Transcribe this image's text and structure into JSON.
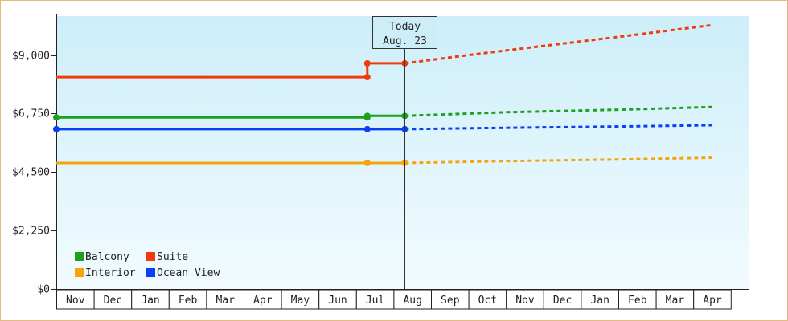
{
  "chart_data": {
    "type": "line",
    "title": "",
    "xlabel": "",
    "ylabel": "",
    "ylim": [
      0,
      10500
    ],
    "y_ticks": [
      0,
      2250,
      4500,
      6750,
      9000
    ],
    "y_tick_labels": [
      "$0",
      "$2,250",
      "$4,500",
      "$6,750",
      "$9,000"
    ],
    "month_labels": [
      "Nov",
      "Dec",
      "Jan",
      "Feb",
      "Mar",
      "Apr",
      "May",
      "Jun",
      "Jul",
      "Aug",
      "Sep",
      "Oct",
      "Nov",
      "Dec",
      "Jan",
      "Feb",
      "Mar",
      "Apr"
    ],
    "today": {
      "label": "Today",
      "date": "Aug. 23",
      "x": 9.3
    },
    "grid": false,
    "legend_position": "bottom-left",
    "series": [
      {
        "name": "Balcony",
        "color": "#1ca11c",
        "actual": [
          [
            0,
            6600
          ],
          [
            8.3,
            6600
          ],
          [
            8.3,
            6660
          ],
          [
            9.3,
            6660
          ]
        ],
        "forecast": [
          [
            9.3,
            6660
          ],
          [
            12,
            6800
          ],
          [
            15,
            6900
          ],
          [
            17.5,
            7000
          ]
        ]
      },
      {
        "name": "Suite",
        "color": "#f23b0c",
        "actual": [
          [
            0,
            8150
          ],
          [
            8.3,
            8150
          ],
          [
            8.3,
            8680
          ],
          [
            9.3,
            8680
          ]
        ],
        "forecast": [
          [
            9.3,
            8680
          ],
          [
            11,
            9000
          ],
          [
            13,
            9350
          ],
          [
            15,
            9700
          ],
          [
            17.5,
            10150
          ]
        ]
      },
      {
        "name": "Interior",
        "color": "#f5a40c",
        "actual": [
          [
            0,
            4850
          ],
          [
            8.3,
            4850
          ],
          [
            9.3,
            4850
          ]
        ],
        "forecast": [
          [
            9.3,
            4850
          ],
          [
            12,
            4920
          ],
          [
            15,
            4980
          ],
          [
            17.5,
            5050
          ]
        ]
      },
      {
        "name": "Ocean View",
        "color": "#0a3ff2",
        "actual": [
          [
            0,
            6150
          ],
          [
            8.3,
            6150
          ],
          [
            9.3,
            6150
          ]
        ],
        "forecast": [
          [
            9.3,
            6150
          ],
          [
            12,
            6200
          ],
          [
            15,
            6250
          ],
          [
            17.5,
            6300
          ]
        ]
      }
    ],
    "markers": [
      {
        "series": "Balcony",
        "points": [
          [
            0,
            6600
          ],
          [
            8.3,
            6600
          ],
          [
            8.3,
            6660
          ],
          [
            9.3,
            6660
          ]
        ]
      },
      {
        "series": "Suite",
        "points": [
          [
            8.3,
            8150
          ],
          [
            8.3,
            8680
          ],
          [
            9.3,
            8680
          ]
        ]
      },
      {
        "series": "Interior",
        "points": [
          [
            8.3,
            4850
          ],
          [
            9.3,
            4850
          ]
        ]
      },
      {
        "series": "Ocean View",
        "points": [
          [
            0,
            6150
          ],
          [
            8.3,
            6150
          ],
          [
            9.3,
            6150
          ]
        ]
      }
    ]
  }
}
